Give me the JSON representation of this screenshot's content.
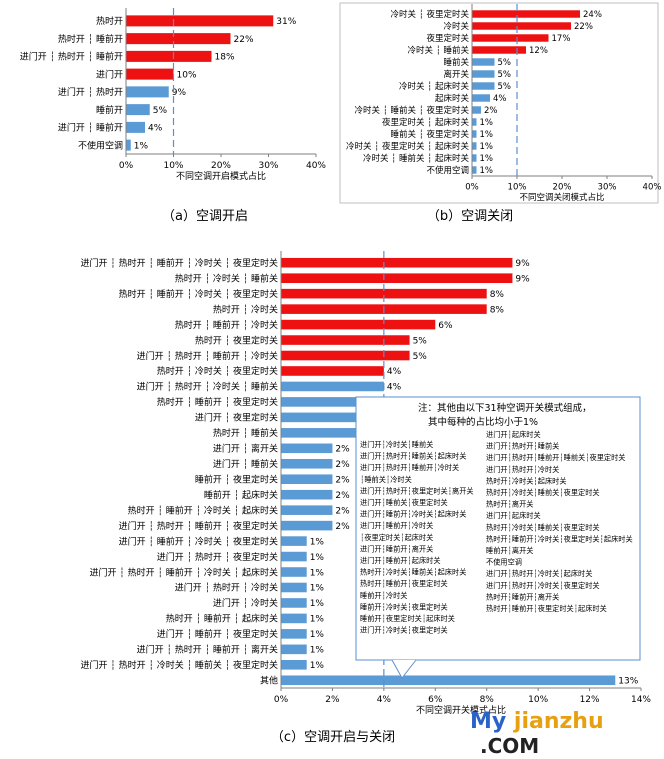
{
  "chart_data": [
    {
      "type": "bar",
      "orientation": "horizontal",
      "xlabel": "不同空调开启模式占比",
      "xlim": [
        0,
        40
      ],
      "xticks": [
        "0%",
        "10%",
        "20%",
        "30%",
        "40%"
      ],
      "reference_line": 10,
      "categories": [
        "热时开",
        "热时开 ┆ 睡前开",
        "进门开 ┆ 热时开 ┆ 睡前开",
        "进门开",
        "进门开 ┆ 热时开",
        "睡前开",
        "进门开 ┆ 睡前开",
        "不使用空调"
      ],
      "values": [
        31,
        22,
        18,
        10,
        9,
        5,
        4,
        1
      ],
      "labels": [
        "31%",
        "22%",
        "18%",
        "10%",
        "9%",
        "5%",
        "4%",
        "1%"
      ],
      "colors": [
        "#ee1111",
        "#ee1111",
        "#ee1111",
        "#ee1111",
        "#5b9bd5",
        "#5b9bd5",
        "#5b9bd5",
        "#5b9bd5"
      ],
      "caption": "（a）空调开启"
    },
    {
      "type": "bar",
      "orientation": "horizontal",
      "xlabel": "不同空调关闭模式占比",
      "xlim": [
        0,
        40
      ],
      "xticks": [
        "0%",
        "10%",
        "20%",
        "30%",
        "40%"
      ],
      "reference_line": 10,
      "categories": [
        "冷时关 ┆ 夜里定时关",
        "冷时关",
        "夜里定时关",
        "冷时关 ┆ 睡前关",
        "睡前关",
        "离开关",
        "冷时关 ┆ 起床时关",
        "起床时关",
        "冷时关 ┆ 睡前关 ┆ 夜里定时关",
        "夜里定时关 ┆ 起床时关",
        "睡前关 ┆ 夜里定时关",
        "冷时关 ┆ 夜里定时关 ┆ 起床时关",
        "冷时关 ┆ 睡前关 ┆ 起床时关",
        "不使用空调"
      ],
      "values": [
        24,
        22,
        17,
        12,
        5,
        5,
        5,
        4,
        2,
        1,
        1,
        1,
        1,
        1
      ],
      "labels": [
        "24%",
        "22%",
        "17%",
        "12%",
        "5%",
        "5%",
        "5%",
        "4%",
        "2%",
        "1%",
        "1%",
        "1%",
        "1%",
        "1%"
      ],
      "colors": [
        "#ee1111",
        "#ee1111",
        "#ee1111",
        "#ee1111",
        "#5b9bd5",
        "#5b9bd5",
        "#5b9bd5",
        "#5b9bd5",
        "#5b9bd5",
        "#5b9bd5",
        "#5b9bd5",
        "#5b9bd5",
        "#5b9bd5",
        "#5b9bd5"
      ],
      "caption": "（b）空调关闭"
    },
    {
      "type": "bar",
      "orientation": "horizontal",
      "xlabel": "不同空调开关模式占比",
      "xlim": [
        0,
        14
      ],
      "xticks": [
        "0%",
        "2%",
        "4%",
        "6%",
        "8%",
        "10%",
        "12%",
        "14%"
      ],
      "reference_line": 4,
      "categories": [
        "进门开 ┆ 热时开 ┆ 睡前开 ┆ 冷时关 ┆ 夜里定时关",
        "热时开 ┆ 冷时关 ┆ 睡前关",
        "热时开 ┆ 睡前开 ┆ 冷时关 ┆ 夜里定时关",
        "热时开 ┆ 冷时关",
        "热时开 ┆ 睡前开 ┆ 冷时关",
        "热时开 ┆ 夜里定时关",
        "进门开 ┆ 热时开 ┆ 睡前开 ┆ 冷时关",
        "热时开 ┆ 冷时关 ┆ 夜里定时关",
        "进门开 ┆ 热时开 ┆ 冷时关 ┆ 睡前关",
        "热时开 ┆ 睡前开 ┆ 夜里定时关",
        "进门开 ┆ 夜里定时关",
        "热时开 ┆ 睡前关",
        "进门开 ┆ 离开关",
        "进门开 ┆ 睡前关",
        "睡前开 ┆ 夜里定时关",
        "睡前开 ┆ 起床时关",
        "热时开 ┆ 睡前开 ┆ 冷时关 ┆ 起床时关",
        "进门开 ┆ 热时开 ┆ 睡前开 ┆ 夜里定时关",
        "进门开 ┆ 睡前开 ┆ 冷时关 ┆ 夜里定时关",
        "进门开 ┆ 热时开 ┆ 夜里定时关",
        "进门开 ┆ 热时开 ┆ 睡前开 ┆ 冷时关 ┆ 起床时关",
        "进门开 ┆ 热时开 ┆ 冷时关",
        "进门开 ┆ 冷时关",
        "热时开 ┆ 睡前开 ┆ 起床时关",
        "进门开 ┆ 睡前开 ┆ 夜里定时关",
        "进门开 ┆ 热时开 ┆ 睡前开 ┆ 离开关",
        "进门开 ┆ 热时开 ┆ 冷时关 ┆ 睡前关 ┆ 夜里定时关",
        "其他"
      ],
      "values": [
        9,
        9,
        8,
        8,
        6,
        5,
        5,
        4,
        4,
        3,
        3,
        3,
        2,
        2,
        2,
        2,
        2,
        2,
        1,
        1,
        1,
        1,
        1,
        1,
        1,
        1,
        1,
        13
      ],
      "labels": [
        "9%",
        "9%",
        "8%",
        "8%",
        "6%",
        "5%",
        "5%",
        "4%",
        "4%",
        "3%",
        "3%",
        "3%",
        "2%",
        "2%",
        "2%",
        "2%",
        "2%",
        "2%",
        "1%",
        "1%",
        "1%",
        "1%",
        "1%",
        "1%",
        "1%",
        "1%",
        "1%",
        "13%"
      ],
      "colors": [
        "#ee1111",
        "#ee1111",
        "#ee1111",
        "#ee1111",
        "#ee1111",
        "#ee1111",
        "#ee1111",
        "#ee1111",
        "#5b9bd5",
        "#5b9bd5",
        "#5b9bd5",
        "#5b9bd5",
        "#5b9bd5",
        "#5b9bd5",
        "#5b9bd5",
        "#5b9bd5",
        "#5b9bd5",
        "#5b9bd5",
        "#5b9bd5",
        "#5b9bd5",
        "#5b9bd5",
        "#5b9bd5",
        "#5b9bd5",
        "#5b9bd5",
        "#5b9bd5",
        "#5b9bd5",
        "#5b9bd5",
        "#5b9bd5"
      ],
      "caption": "（c）空调开启与关闭",
      "annotation": {
        "title": "注：其他由以下31种空调开关模式组成，",
        "subtitle": "其中每种的占比均小于1%",
        "items": [
          "进门开┆冷时关┆睡前关",
          "进门开┆热时开┆睡前关┆起床时关",
          "进门开┆热时开┆睡前开┆冷时关",
          "┆睡前关┆冷时关",
          "进门开┆热时开┆夜里定时关┆离开关",
          "进门开┆睡前关┆夜里定时关",
          "进门开┆睡前开┆冷时关┆起床时关",
          "进门开┆睡前开┆冷时关",
          "┆夜里定时关┆起床时关",
          "进门开┆睡前开┆离开关",
          "进门开┆睡前开┆起床时关",
          "热时开┆冷时关┆睡前关┆起床时关",
          "热时开┆睡前开┆夜里定时关",
          "睡前开┆冷时关",
          "睡前开┆冷时关┆夜里定时关",
          "睡前开┆夜里定时关┆起床时关",
          "进门开┆冷时关┆夜里定时关",
          "进门开┆起床时关",
          "进门开┆热时开┆睡前关",
          "进门开┆热时开┆睡前开┆睡前关┆夜里定时关",
          "进门开┆热时开┆冷时关",
          "热时开┆冷时关┆起床时关",
          "热时开┆冷时关┆睡前关┆夜里定时关",
          "热时开┆离开关",
          "进门开┆起床时关",
          "热时开┆冷时关┆睡前关┆夜里定时关",
          "热时开┆睡前开┆冷时关┆夜里定时关┆起床时关",
          "睡前开┆离开关",
          "不使用空调",
          "进门开┆热时开┆冷时关┆起床时关",
          "进门开┆热时开┆冷时关┆夜里定时关",
          "热时开┆睡前开┆离开关",
          "热时开┆睡前开┆夜里定时关┆起床时关"
        ]
      }
    }
  ],
  "watermark": {
    "my": "My",
    "site": "jianzhu",
    "tld": ".COM"
  }
}
